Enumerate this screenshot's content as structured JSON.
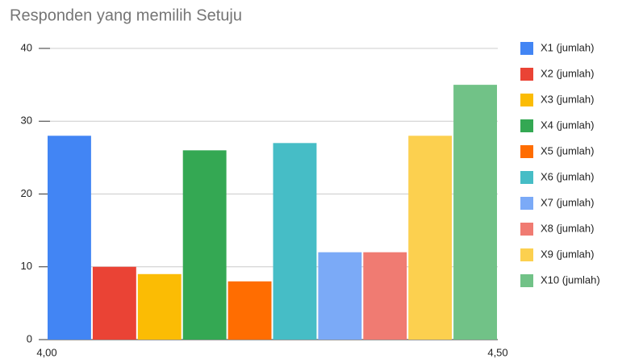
{
  "chart_data": {
    "type": "bar",
    "title": "Responden yang memilih Setuju",
    "x": [
      4.25
    ],
    "series": [
      {
        "name": "X1 (jumlah)",
        "color": "#4285f4",
        "values": [
          28
        ]
      },
      {
        "name": "X2 (jumlah)",
        "color": "#ea4335",
        "values": [
          10
        ]
      },
      {
        "name": "X3 (jumlah)",
        "color": "#fbbc04",
        "values": [
          9
        ]
      },
      {
        "name": "X4 (jumlah)",
        "color": "#34a853",
        "values": [
          26
        ]
      },
      {
        "name": "X5 (jumlah)",
        "color": "#ff6d01",
        "values": [
          8
        ]
      },
      {
        "name": "X6 (jumlah)",
        "color": "#46bdc6",
        "values": [
          27
        ]
      },
      {
        "name": "X7 (jumlah)",
        "color": "#7baaf7",
        "values": [
          12
        ]
      },
      {
        "name": "X8 (jumlah)",
        "color": "#f07b72",
        "values": [
          12
        ]
      },
      {
        "name": "X9 (jumlah)",
        "color": "#fcd04f",
        "values": [
          28
        ]
      },
      {
        "name": "X10 (jumlah)",
        "color": "#71c287",
        "values": [
          35
        ]
      }
    ],
    "xlim": [
      4,
      4.5
    ],
    "xticks": [
      {
        "value": 4,
        "label": "4,00"
      },
      {
        "value": 4.5,
        "label": "4,50"
      }
    ],
    "ylim": [
      0,
      40
    ],
    "yticks": [
      0,
      10,
      20,
      30,
      40
    ],
    "grid": true,
    "legend": "right"
  }
}
